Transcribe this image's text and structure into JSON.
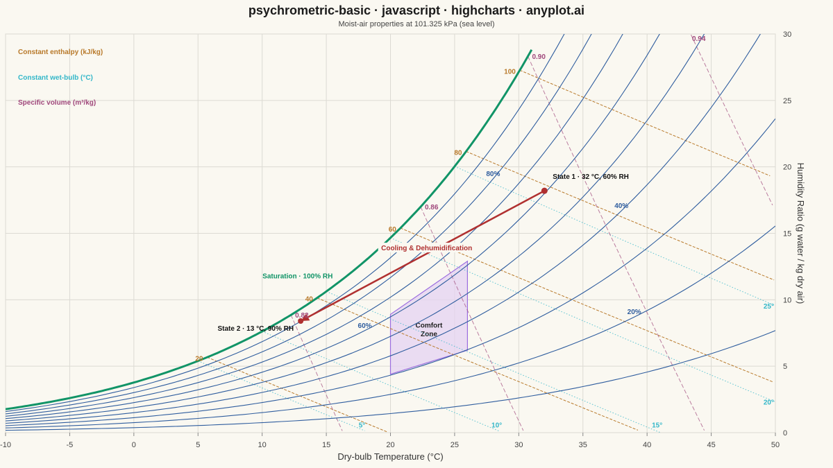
{
  "title": "psychrometric-basic · javascript · highcharts · anyplot.ai",
  "subtitle": "Moist-air properties at 101.325 kPa (sea level)",
  "colors": {
    "background": "#faf8f1",
    "grid": "#dcdad3",
    "rh": "#2f5d9e",
    "saturation": "#119467",
    "enthalpy": "#b8792a",
    "wetbulb": "#33b7c9",
    "volume": "#a0487c",
    "process": "#b03030",
    "comfort_fill": "#e4d3f2",
    "comfort_stroke": "#9b6ddf"
  },
  "legend": {
    "position": "top-left",
    "enthalpy": "Constant enthalpy (kJ/kg)",
    "wetbulb": "Constant wet-bulb (°C)",
    "volume": "Specific volume (m³/kg)"
  },
  "chart_data": {
    "type": "line",
    "xlabel": "Dry-bulb Temperature (°C)",
    "ylabel": "Humidity Ratio (g water / kg dry air)",
    "xlim": [
      -10,
      50
    ],
    "ylim": [
      0,
      30
    ],
    "y_axis_side": "right",
    "grid": true,
    "xticks": [
      "-10",
      "-5",
      "0",
      "5",
      "10",
      "15",
      "20",
      "25",
      "30",
      "35",
      "40",
      "45",
      "50"
    ],
    "yticks": [
      "0",
      "5",
      "10",
      "15",
      "20",
      "25",
      "30"
    ],
    "pressure_kpa": 101.325,
    "saturation": {
      "name": "Saturation · 100% RH",
      "rh": 100,
      "x_max": 31
    },
    "rh_curves": [
      10,
      20,
      30,
      40,
      50,
      60,
      70,
      80,
      90
    ],
    "rh_labels": [
      {
        "rh": 80,
        "text": "80%",
        "t": 28
      },
      {
        "rh": 60,
        "text": "60%",
        "t": 18
      },
      {
        "rh": 40,
        "text": "40%",
        "t": 38
      },
      {
        "rh": 20,
        "text": "20%",
        "t": 39
      }
    ],
    "enthalpy_lines": [
      {
        "h": 20,
        "text": "20"
      },
      {
        "h": 40,
        "text": "40"
      },
      {
        "h": 60,
        "text": "60"
      },
      {
        "h": 80,
        "text": "80"
      },
      {
        "h": 100,
        "text": "100"
      }
    ],
    "wetbulb_lines": [
      {
        "twb": 5,
        "text": "5°"
      },
      {
        "twb": 10,
        "text": "10°"
      },
      {
        "twb": 15,
        "text": "15°"
      },
      {
        "twb": 20,
        "text": "20°"
      },
      {
        "twb": 25,
        "text": "25°"
      }
    ],
    "volume_lines": [
      {
        "v": 0.82,
        "text": "0.82"
      },
      {
        "v": 0.86,
        "text": "0.86"
      },
      {
        "v": 0.9,
        "text": "0.90"
      },
      {
        "v": 0.94,
        "text": "0.94"
      }
    ],
    "comfort_zone": {
      "label_line1": "Comfort",
      "label_line2": "Zone",
      "points": [
        [
          20,
          4.4
        ],
        [
          26,
          6.2
        ],
        [
          26,
          12.9
        ],
        [
          20,
          8.9
        ]
      ]
    },
    "process": {
      "label": "Cooling & Dehumidification",
      "start": {
        "t": 32,
        "w": 18.2,
        "label": "State 1 · 32 °C, 60% RH"
      },
      "end": {
        "t": 13,
        "w": 8.4,
        "label": "State 2 · 13 °C, 90% RH"
      }
    }
  }
}
